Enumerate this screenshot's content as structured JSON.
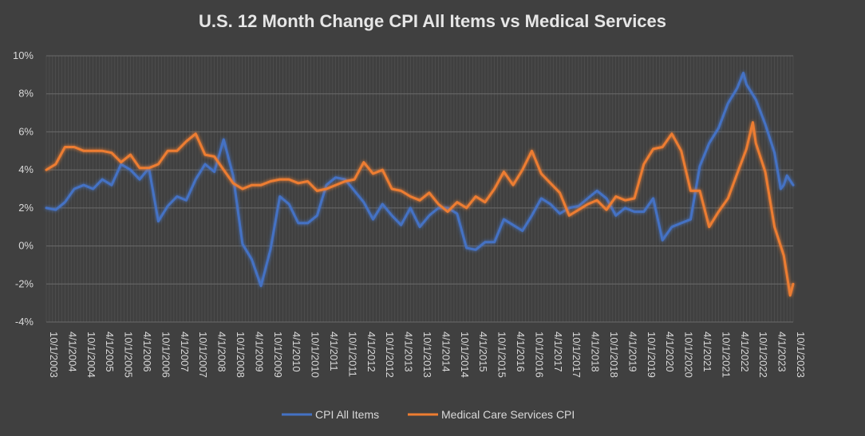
{
  "chart_data": {
    "type": "line",
    "title": "U.S. 12 Month Change CPI All Items vs Medical Services",
    "xlabel": "",
    "ylabel": "",
    "ylim": [
      -4,
      10
    ],
    "y_ticks": [
      "10%",
      "8%",
      "6%",
      "4%",
      "2%",
      "0%",
      "-2%",
      "-4%"
    ],
    "x_range": [
      "2003-10-01",
      "2023-10-01"
    ],
    "x_tick_labels": [
      "10/1/2003",
      "4/1/2004",
      "10/1/2004",
      "4/1/2005",
      "10/1/2005",
      "4/1/2006",
      "10/1/2006",
      "4/1/2007",
      "10/1/2007",
      "4/1/2008",
      "10/1/2008",
      "4/1/2009",
      "10/1/2009",
      "4/1/2010",
      "10/1/2010",
      "4/1/2011",
      "10/1/2011",
      "4/1/2012",
      "10/1/2012",
      "4/1/2013",
      "10/1/2013",
      "4/1/2014",
      "10/1/2014",
      "4/1/2015",
      "10/1/2015",
      "4/1/2016",
      "10/1/2016",
      "4/1/2017",
      "10/1/2017",
      "4/1/2018",
      "10/1/2018",
      "4/1/2019",
      "10/1/2019",
      "4/1/2020",
      "10/1/2020",
      "4/1/2021",
      "10/1/2021",
      "4/1/2022",
      "10/1/2022",
      "4/1/2023",
      "10/1/2023"
    ],
    "grid": true,
    "legend_position": "bottom",
    "series": [
      {
        "name": "CPI All Items",
        "color": "#4472c4",
        "points": [
          [
            "2003-10-01",
            2.0
          ],
          [
            "2004-01-01",
            1.9
          ],
          [
            "2004-04-01",
            2.3
          ],
          [
            "2004-07-01",
            3.0
          ],
          [
            "2004-10-01",
            3.2
          ],
          [
            "2005-01-01",
            3.0
          ],
          [
            "2005-04-01",
            3.5
          ],
          [
            "2005-07-01",
            3.2
          ],
          [
            "2005-10-01",
            4.3
          ],
          [
            "2006-01-01",
            4.0
          ],
          [
            "2006-04-01",
            3.5
          ],
          [
            "2006-07-01",
            4.1
          ],
          [
            "2006-10-01",
            1.3
          ],
          [
            "2007-01-01",
            2.1
          ],
          [
            "2007-04-01",
            2.6
          ],
          [
            "2007-07-01",
            2.4
          ],
          [
            "2007-10-01",
            3.5
          ],
          [
            "2008-01-01",
            4.3
          ],
          [
            "2008-04-01",
            3.9
          ],
          [
            "2008-07-01",
            5.6
          ],
          [
            "2008-10-01",
            3.7
          ],
          [
            "2009-01-01",
            0.1
          ],
          [
            "2009-04-01",
            -0.7
          ],
          [
            "2009-07-01",
            -2.1
          ],
          [
            "2009-10-01",
            -0.2
          ],
          [
            "2010-01-01",
            2.6
          ],
          [
            "2010-04-01",
            2.2
          ],
          [
            "2010-07-01",
            1.2
          ],
          [
            "2010-10-01",
            1.2
          ],
          [
            "2011-01-01",
            1.6
          ],
          [
            "2011-04-01",
            3.2
          ],
          [
            "2011-07-01",
            3.6
          ],
          [
            "2011-10-01",
            3.5
          ],
          [
            "2012-01-01",
            2.9
          ],
          [
            "2012-04-01",
            2.3
          ],
          [
            "2012-07-01",
            1.4
          ],
          [
            "2012-10-01",
            2.2
          ],
          [
            "2013-01-01",
            1.6
          ],
          [
            "2013-04-01",
            1.1
          ],
          [
            "2013-07-01",
            2.0
          ],
          [
            "2013-10-01",
            1.0
          ],
          [
            "2014-01-01",
            1.6
          ],
          [
            "2014-04-01",
            2.0
          ],
          [
            "2014-07-01",
            2.0
          ],
          [
            "2014-10-01",
            1.7
          ],
          [
            "2015-01-01",
            -0.1
          ],
          [
            "2015-04-01",
            -0.2
          ],
          [
            "2015-07-01",
            0.2
          ],
          [
            "2015-10-01",
            0.2
          ],
          [
            "2016-01-01",
            1.4
          ],
          [
            "2016-04-01",
            1.1
          ],
          [
            "2016-07-01",
            0.8
          ],
          [
            "2016-10-01",
            1.6
          ],
          [
            "2017-01-01",
            2.5
          ],
          [
            "2017-04-01",
            2.2
          ],
          [
            "2017-07-01",
            1.7
          ],
          [
            "2017-10-01",
            2.0
          ],
          [
            "2018-01-01",
            2.1
          ],
          [
            "2018-04-01",
            2.5
          ],
          [
            "2018-07-01",
            2.9
          ],
          [
            "2018-10-01",
            2.5
          ],
          [
            "2019-01-01",
            1.6
          ],
          [
            "2019-04-01",
            2.0
          ],
          [
            "2019-07-01",
            1.8
          ],
          [
            "2019-10-01",
            1.8
          ],
          [
            "2020-01-01",
            2.5
          ],
          [
            "2020-04-01",
            0.3
          ],
          [
            "2020-07-01",
            1.0
          ],
          [
            "2020-10-01",
            1.2
          ],
          [
            "2021-01-01",
            1.4
          ],
          [
            "2021-04-01",
            4.2
          ],
          [
            "2021-07-01",
            5.4
          ],
          [
            "2021-10-01",
            6.2
          ],
          [
            "2022-01-01",
            7.5
          ],
          [
            "2022-04-01",
            8.3
          ],
          [
            "2022-06-01",
            9.1
          ],
          [
            "2022-07-01",
            8.5
          ],
          [
            "2022-10-01",
            7.7
          ],
          [
            "2023-01-01",
            6.4
          ],
          [
            "2023-04-01",
            4.9
          ],
          [
            "2023-06-01",
            3.0
          ],
          [
            "2023-07-01",
            3.2
          ],
          [
            "2023-08-01",
            3.7
          ],
          [
            "2023-10-01",
            3.2
          ]
        ]
      },
      {
        "name": "Medical Care Services CPI",
        "color": "#ed7d31",
        "points": [
          [
            "2003-10-01",
            4.0
          ],
          [
            "2004-01-01",
            4.3
          ],
          [
            "2004-04-01",
            5.2
          ],
          [
            "2004-07-01",
            5.2
          ],
          [
            "2004-10-01",
            5.0
          ],
          [
            "2005-01-01",
            5.0
          ],
          [
            "2005-04-01",
            5.0
          ],
          [
            "2005-07-01",
            4.9
          ],
          [
            "2005-10-01",
            4.4
          ],
          [
            "2006-01-01",
            4.8
          ],
          [
            "2006-04-01",
            4.1
          ],
          [
            "2006-07-01",
            4.1
          ],
          [
            "2006-10-01",
            4.3
          ],
          [
            "2007-01-01",
            5.0
          ],
          [
            "2007-04-01",
            5.0
          ],
          [
            "2007-07-01",
            5.5
          ],
          [
            "2007-10-01",
            5.9
          ],
          [
            "2008-01-01",
            4.8
          ],
          [
            "2008-04-01",
            4.7
          ],
          [
            "2008-07-01",
            4.0
          ],
          [
            "2008-10-01",
            3.3
          ],
          [
            "2009-01-01",
            3.0
          ],
          [
            "2009-04-01",
            3.2
          ],
          [
            "2009-07-01",
            3.2
          ],
          [
            "2009-10-01",
            3.4
          ],
          [
            "2010-01-01",
            3.5
          ],
          [
            "2010-04-01",
            3.5
          ],
          [
            "2010-07-01",
            3.3
          ],
          [
            "2010-10-01",
            3.4
          ],
          [
            "2011-01-01",
            2.9
          ],
          [
            "2011-04-01",
            3.0
          ],
          [
            "2011-07-01",
            3.2
          ],
          [
            "2011-10-01",
            3.4
          ],
          [
            "2012-01-01",
            3.5
          ],
          [
            "2012-04-01",
            4.4
          ],
          [
            "2012-07-01",
            3.8
          ],
          [
            "2012-10-01",
            4.0
          ],
          [
            "2013-01-01",
            3.0
          ],
          [
            "2013-04-01",
            2.9
          ],
          [
            "2013-07-01",
            2.6
          ],
          [
            "2013-10-01",
            2.4
          ],
          [
            "2014-01-01",
            2.8
          ],
          [
            "2014-04-01",
            2.2
          ],
          [
            "2014-07-01",
            1.8
          ],
          [
            "2014-10-01",
            2.3
          ],
          [
            "2015-01-01",
            2.0
          ],
          [
            "2015-04-01",
            2.6
          ],
          [
            "2015-07-01",
            2.3
          ],
          [
            "2015-10-01",
            3.0
          ],
          [
            "2016-01-01",
            3.9
          ],
          [
            "2016-04-01",
            3.2
          ],
          [
            "2016-07-01",
            4.0
          ],
          [
            "2016-10-01",
            5.0
          ],
          [
            "2017-01-01",
            3.8
          ],
          [
            "2017-04-01",
            3.3
          ],
          [
            "2017-07-01",
            2.8
          ],
          [
            "2017-10-01",
            1.6
          ],
          [
            "2018-01-01",
            1.9
          ],
          [
            "2018-04-01",
            2.2
          ],
          [
            "2018-07-01",
            2.4
          ],
          [
            "2018-10-01",
            1.9
          ],
          [
            "2019-01-01",
            2.6
          ],
          [
            "2019-04-01",
            2.4
          ],
          [
            "2019-07-01",
            2.5
          ],
          [
            "2019-10-01",
            4.3
          ],
          [
            "2020-01-01",
            5.1
          ],
          [
            "2020-04-01",
            5.2
          ],
          [
            "2020-07-01",
            5.9
          ],
          [
            "2020-10-01",
            5.0
          ],
          [
            "2021-01-01",
            2.9
          ],
          [
            "2021-04-01",
            2.9
          ],
          [
            "2021-07-01",
            1.0
          ],
          [
            "2021-10-01",
            1.8
          ],
          [
            "2022-01-01",
            2.5
          ],
          [
            "2022-04-01",
            3.8
          ],
          [
            "2022-07-01",
            5.1
          ],
          [
            "2022-09-01",
            6.5
          ],
          [
            "2022-10-01",
            5.4
          ],
          [
            "2023-01-01",
            3.9
          ],
          [
            "2023-04-01",
            1.0
          ],
          [
            "2023-07-01",
            -0.5
          ],
          [
            "2023-09-01",
            -2.6
          ],
          [
            "2023-10-01",
            -2.0
          ]
        ]
      }
    ]
  }
}
